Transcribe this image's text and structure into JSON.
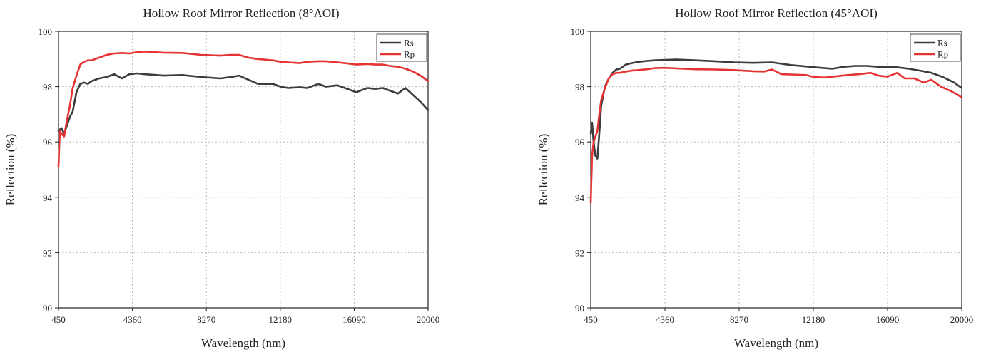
{
  "chart_data": [
    {
      "type": "line",
      "title": "Hollow Roof Mirror Reflection (8°AOI)",
      "xlabel": "Wavelength (nm)",
      "ylabel": "Reflection (%)",
      "xlim": [
        450,
        20000
      ],
      "ylim": [
        90,
        100
      ],
      "xticks": [
        "450",
        "4360",
        "8270",
        "12180",
        "16090",
        "20000"
      ],
      "yticks": [
        "90",
        "92",
        "94",
        "96",
        "98",
        "100"
      ],
      "grid": true,
      "legend": "top-right",
      "series": [
        {
          "name": "Rs",
          "color": "#3c3c3c",
          "x": [
            450,
            600,
            750,
            900,
            1050,
            1200,
            1400,
            1600,
            1800,
            2000,
            2200,
            2600,
            3000,
            3400,
            3800,
            4200,
            4600,
            5000,
            6000,
            7000,
            8000,
            9000,
            9600,
            10000,
            10500,
            11000,
            11800,
            12200,
            12600,
            13200,
            13600,
            14200,
            14600,
            15200,
            15600,
            16200,
            16800,
            17200,
            17600,
            18000,
            18400,
            18800,
            19200,
            19600,
            20000
          ],
          "y": [
            96.4,
            96.5,
            96.3,
            96.6,
            96.9,
            97.1,
            97.8,
            98.1,
            98.15,
            98.1,
            98.2,
            98.3,
            98.35,
            98.45,
            98.3,
            98.45,
            98.48,
            98.45,
            98.4,
            98.42,
            98.35,
            98.3,
            98.35,
            98.4,
            98.25,
            98.1,
            98.1,
            98.0,
            97.95,
            97.98,
            97.95,
            98.1,
            98.0,
            98.05,
            97.95,
            97.8,
            97.95,
            97.92,
            97.95,
            97.85,
            97.75,
            97.95,
            97.7,
            97.45,
            97.15
          ]
        },
        {
          "name": "Rp",
          "color": "#e53232",
          "x": [
            450,
            520,
            600,
            750,
            900,
            1050,
            1200,
            1400,
            1600,
            1800,
            2000,
            2200,
            2600,
            3000,
            3400,
            3800,
            4200,
            4600,
            5000,
            6000,
            7000,
            8000,
            9000,
            9600,
            10000,
            10500,
            11000,
            11800,
            12200,
            12600,
            13200,
            13600,
            14200,
            14600,
            15200,
            15600,
            16200,
            16800,
            17200,
            17600,
            18000,
            18400,
            18800,
            19200,
            19600,
            20000
          ],
          "y": [
            95.1,
            96.4,
            96.3,
            96.2,
            96.8,
            97.3,
            97.95,
            98.4,
            98.8,
            98.9,
            98.95,
            98.95,
            99.05,
            99.15,
            99.2,
            99.22,
            99.2,
            99.25,
            99.27,
            99.23,
            99.22,
            99.15,
            99.12,
            99.15,
            99.15,
            99.05,
            99.0,
            98.95,
            98.9,
            98.88,
            98.85,
            98.9,
            98.92,
            98.92,
            98.88,
            98.85,
            98.8,
            98.82,
            98.8,
            98.8,
            98.75,
            98.72,
            98.65,
            98.55,
            98.4,
            98.2
          ]
        }
      ]
    },
    {
      "type": "line",
      "title": "Hollow Roof Mirror Reflection (45°AOI)",
      "xlabel": "Wavelength (nm)",
      "ylabel": "Reflection (%)",
      "xlim": [
        450,
        20000
      ],
      "ylim": [
        90,
        100
      ],
      "xticks": [
        "450",
        "4360",
        "8270",
        "12180",
        "16090",
        "20000"
      ],
      "yticks": [
        "90",
        "92",
        "94",
        "96",
        "98",
        "100"
      ],
      "grid": true,
      "legend": "top-right",
      "series": [
        {
          "name": "Rs",
          "color": "#3c3c3c",
          "x": [
            450,
            520,
            600,
            700,
            800,
            900,
            1000,
            1200,
            1400,
            1600,
            1800,
            2000,
            2300,
            2600,
            3000,
            3400,
            3800,
            4360,
            5000,
            6000,
            7000,
            8000,
            9000,
            10000,
            11000,
            12000,
            12600,
            13200,
            13800,
            14400,
            15000,
            15600,
            16090,
            16600,
            17200,
            17800,
            18400,
            19000,
            19600,
            20000
          ],
          "y": [
            96.3,
            96.7,
            96.0,
            95.5,
            95.4,
            96.3,
            97.3,
            98.0,
            98.3,
            98.5,
            98.62,
            98.65,
            98.8,
            98.85,
            98.9,
            98.93,
            98.95,
            98.97,
            98.98,
            98.95,
            98.92,
            98.88,
            98.86,
            98.88,
            98.78,
            98.72,
            98.68,
            98.65,
            98.72,
            98.75,
            98.75,
            98.72,
            98.72,
            98.7,
            98.65,
            98.58,
            98.5,
            98.35,
            98.15,
            97.95
          ]
        },
        {
          "name": "Rp",
          "color": "#e53232",
          "x": [
            450,
            520,
            600,
            700,
            800,
            900,
            1000,
            1200,
            1400,
            1600,
            1800,
            2000,
            2300,
            2600,
            3000,
            3400,
            3800,
            4360,
            5000,
            6000,
            7000,
            8000,
            9000,
            9600,
            10000,
            10500,
            11000,
            11800,
            12200,
            12800,
            13400,
            14000,
            14600,
            15200,
            15600,
            16090,
            16600,
            17000,
            17500,
            18000,
            18400,
            18900,
            19400,
            19800,
            20000
          ],
          "y": [
            93.8,
            95.5,
            96.0,
            96.2,
            96.4,
            97.0,
            97.5,
            97.95,
            98.3,
            98.45,
            98.5,
            98.5,
            98.55,
            98.58,
            98.6,
            98.63,
            98.67,
            98.68,
            98.66,
            98.63,
            98.62,
            98.6,
            98.56,
            98.55,
            98.62,
            98.45,
            98.44,
            98.42,
            98.35,
            98.33,
            98.38,
            98.42,
            98.45,
            98.5,
            98.4,
            98.36,
            98.5,
            98.3,
            98.3,
            98.15,
            98.25,
            98.0,
            97.85,
            97.7,
            97.6
          ]
        }
      ]
    }
  ]
}
